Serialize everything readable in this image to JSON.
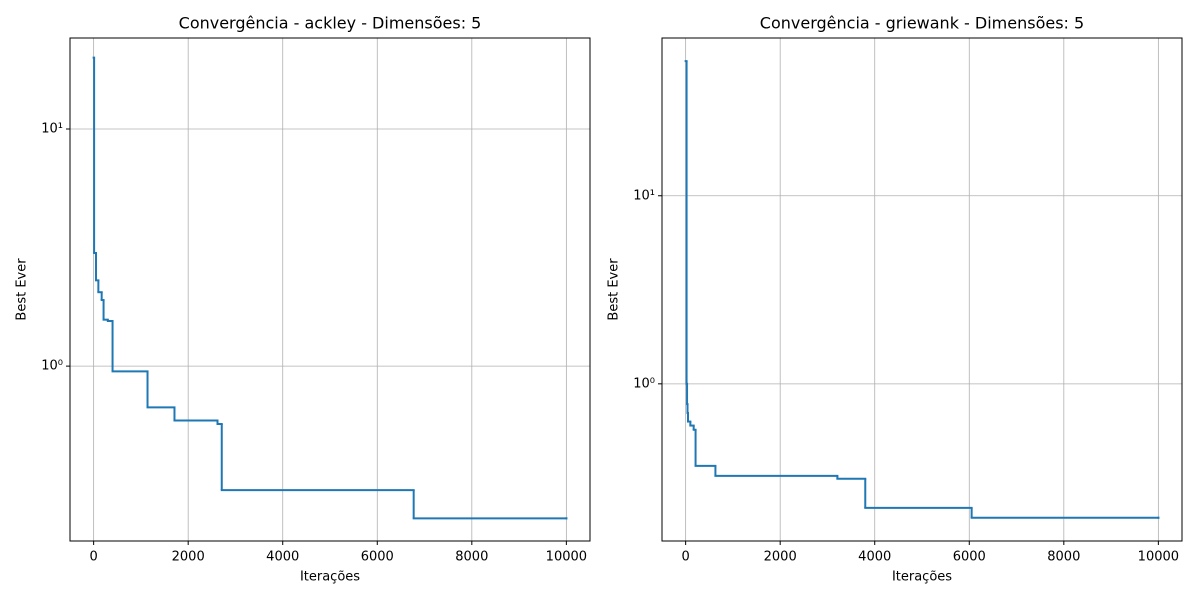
{
  "chart_data": [
    {
      "type": "line",
      "title": "Convergência - ackley - Dimensões: 5",
      "x_label": "Iterações",
      "y_label": "Best Ever",
      "drawstyle": "steps-post",
      "y_scale": "log",
      "grid": true,
      "xlim": [
        -500,
        10500
      ],
      "xticks": [
        0,
        2000,
        4000,
        6000,
        8000,
        10000
      ],
      "ylim": [
        0.183,
        24.2
      ],
      "yticks": [
        {
          "value": 1,
          "label": "10⁰"
        },
        {
          "value": 10,
          "label": "10¹"
        }
      ],
      "x": [
        0,
        10,
        50,
        100,
        170,
        210,
        300,
        400,
        1140,
        1710,
        2620,
        2710,
        6770,
        10000
      ],
      "series": [
        {
          "color": "#1f77b4",
          "values": [
            20,
            3.0,
            2.3,
            2.05,
            1.9,
            1.57,
            1.55,
            0.95,
            0.67,
            0.59,
            0.57,
            0.3,
            0.228,
            0.228
          ]
        }
      ]
    },
    {
      "type": "line",
      "title": "Convergência - griewank - Dimensões: 5",
      "x_label": "Iterações",
      "y_label": "Best Ever",
      "drawstyle": "steps-post",
      "y_scale": "log",
      "grid": true,
      "xlim": [
        -500,
        10500
      ],
      "xticks": [
        0,
        2000,
        4000,
        6000,
        8000,
        10000
      ],
      "ylim": [
        0.146,
        69
      ],
      "yticks": [
        {
          "value": 1,
          "label": "10⁰"
        },
        {
          "value": 10,
          "label": "10¹"
        }
      ],
      "x": [
        0,
        20,
        30,
        40,
        50,
        100,
        170,
        210,
        630,
        3210,
        3800,
        6050,
        10000
      ],
      "series": [
        {
          "color": "#1f77b4",
          "values": [
            52,
            1.0,
            0.78,
            0.7,
            0.63,
            0.6,
            0.57,
            0.366,
            0.324,
            0.313,
            0.219,
            0.194,
            0.194
          ]
        }
      ]
    }
  ]
}
